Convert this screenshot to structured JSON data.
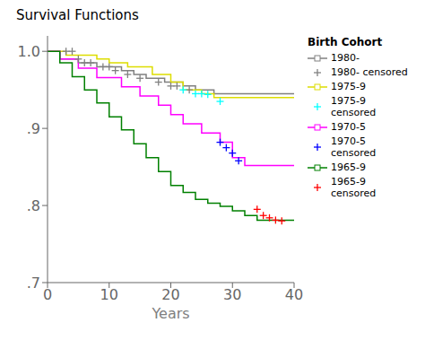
{
  "chart_data": {
    "type": "line",
    "title": "Survival Functions",
    "xlabel": "Years",
    "legend_title": "Birth Cohort",
    "legend": "right",
    "grid": false,
    "xlim": [
      0,
      40
    ],
    "xticks": [
      0,
      10,
      20,
      30,
      40
    ],
    "ylim": [
      0.7,
      1.02
    ],
    "yticks": [
      {
        "value": 0.7,
        "label": ".7"
      },
      {
        "value": 0.8,
        "label": ".8"
      },
      {
        "value": 0.9,
        "label": ".9"
      },
      {
        "value": 1.0,
        "label": "1.0"
      }
    ],
    "series": [
      {
        "name": "1980-",
        "type": "line",
        "line_style": "step",
        "color": "gray",
        "x": [
          0,
          2,
          5,
          8,
          12,
          14,
          16,
          19,
          22,
          24,
          27,
          40
        ],
        "values": [
          1.0,
          0.99,
          0.985,
          0.98,
          0.975,
          0.97,
          0.965,
          0.96,
          0.955,
          0.95,
          0.945,
          0.945
        ]
      },
      {
        "name": "1980- censored",
        "type": "scatter",
        "marker": "+",
        "color": "gray",
        "x": [
          3,
          4,
          5,
          6,
          7,
          9,
          10,
          11,
          13,
          15,
          18,
          20,
          21,
          23
        ],
        "values": [
          1.0,
          1.0,
          0.99,
          0.985,
          0.985,
          0.98,
          0.98,
          0.975,
          0.97,
          0.965,
          0.96,
          0.955,
          0.955,
          0.95
        ]
      },
      {
        "name": "1975-9",
        "type": "line",
        "line_style": "step",
        "color": "#dddd00",
        "x": [
          0,
          1,
          3,
          8,
          10,
          13,
          17,
          20,
          22,
          25,
          27,
          40
        ],
        "values": [
          1.0,
          1.0,
          0.995,
          0.99,
          0.985,
          0.98,
          0.97,
          0.96,
          0.95,
          0.945,
          0.94,
          0.94
        ]
      },
      {
        "name": "1975-9 censored",
        "type": "scatter",
        "marker": "+",
        "color": "cyan",
        "x": [
          22,
          24,
          25,
          26,
          28
        ],
        "values": [
          0.95,
          0.945,
          0.945,
          0.944,
          0.935
        ]
      },
      {
        "name": "1970-5",
        "type": "line",
        "line_style": "step",
        "color": "magenta",
        "x": [
          0,
          2,
          5,
          8,
          12,
          15,
          18,
          20,
          22,
          25,
          28,
          30,
          32,
          40
        ],
        "values": [
          1.0,
          0.99,
          0.978,
          0.966,
          0.954,
          0.942,
          0.93,
          0.918,
          0.906,
          0.894,
          0.882,
          0.862,
          0.852,
          0.852
        ]
      },
      {
        "name": "1970-5 censored",
        "type": "scatter",
        "marker": "+",
        "color": "blue",
        "x": [
          28,
          29,
          30,
          31
        ],
        "values": [
          0.882,
          0.875,
          0.868,
          0.858
        ]
      },
      {
        "name": "1965-9",
        "type": "line",
        "line_style": "step",
        "color": "green",
        "x": [
          0,
          2,
          4,
          6,
          8,
          10,
          12,
          14,
          16,
          18,
          20,
          22,
          24,
          26,
          28,
          30,
          32,
          34,
          40
        ],
        "values": [
          1.0,
          0.985,
          0.967,
          0.95,
          0.933,
          0.915,
          0.898,
          0.88,
          0.862,
          0.844,
          0.826,
          0.817,
          0.808,
          0.803,
          0.799,
          0.793,
          0.787,
          0.781,
          0.781
        ]
      },
      {
        "name": "1965-9 censored",
        "type": "scatter",
        "marker": "+",
        "color": "red",
        "x": [
          34,
          35,
          36,
          37,
          38
        ],
        "values": [
          0.795,
          0.787,
          0.784,
          0.781,
          0.78
        ]
      }
    ]
  }
}
